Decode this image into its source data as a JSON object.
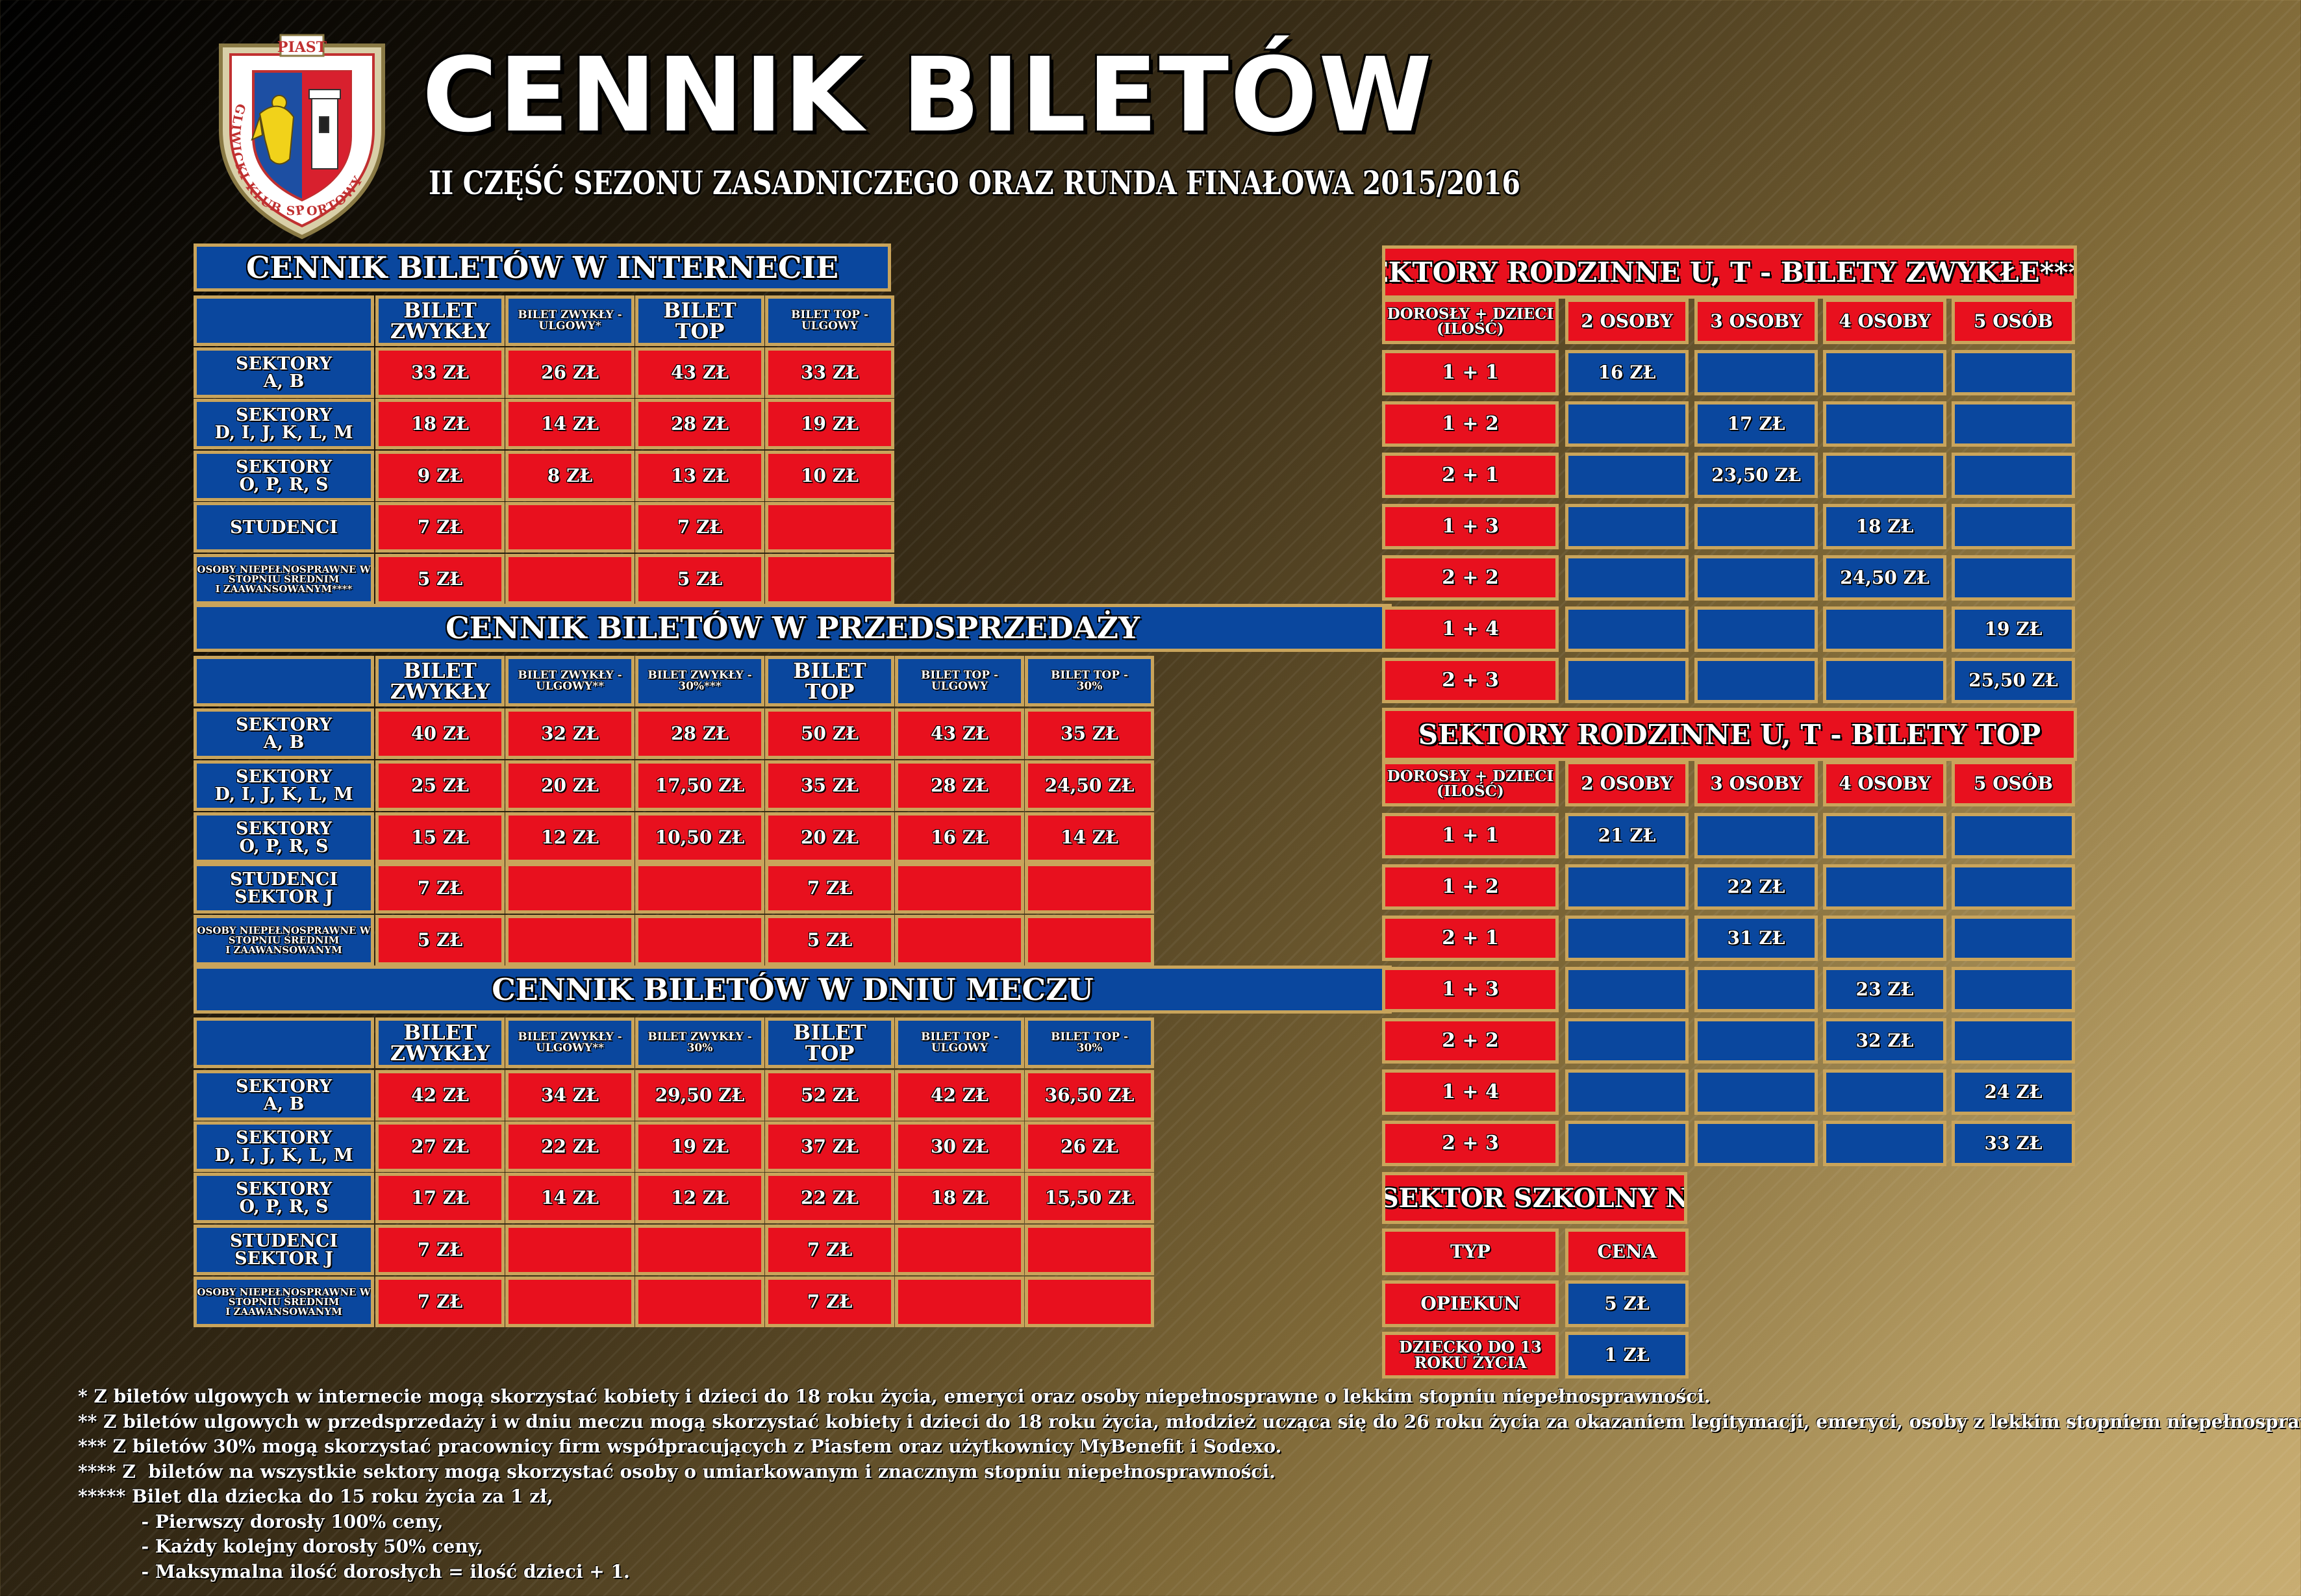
{
  "header": {
    "title": "CENNIK BILETÓW",
    "subtitle": "II CZĘŚĆ SEZONU ZASADNICZEGO ORAZ RUNDA FINAŁOWA 2015/2016",
    "logo_text_top": "PIAST",
    "logo_text_ring": "GLIWICKI KLUB SPORTOWY"
  },
  "internet": {
    "title": "CENNIK BILETÓW W INTERNECIE",
    "columns": [
      "BILET\nZWYKŁY",
      "BILET ZWYKŁY -\nULGOWY*",
      "BILET\nTOP",
      "BILET TOP -\nULGOWY"
    ],
    "rows": [
      {
        "label": "SEKTORY\nA, B",
        "values": [
          "33 ZŁ",
          "26 ZŁ",
          "43 ZŁ",
          "33 ZŁ"
        ]
      },
      {
        "label": "SEKTORY\nD, I, J, K, L, M",
        "values": [
          "18 ZŁ",
          "14 ZŁ",
          "28 ZŁ",
          "19 ZŁ"
        ]
      },
      {
        "label": "SEKTORY\nO, P, R, S",
        "values": [
          "9 ZŁ",
          "8 ZŁ",
          "13 ZŁ",
          "10 ZŁ"
        ]
      },
      {
        "label": "STUDENCI",
        "values": [
          "7 ZŁ",
          "",
          "7 ZŁ",
          ""
        ]
      },
      {
        "label": "OSOBY NIEPEŁNOSPRAWNE W\nSTOPNIU ŚREDNIM\nI ZAAWANSOWANYM****",
        "values": [
          "5 ZŁ",
          "",
          "5 ZŁ",
          ""
        ]
      }
    ]
  },
  "presale": {
    "title": "CENNIK BILETÓW W PRZEDSPRZEDAŻY",
    "columns": [
      "BILET\nZWYKŁY",
      "BILET ZWYKŁY -\nULGOWY**",
      "BILET ZWYKŁY -\n30%***",
      "BILET\nTOP",
      "BILET TOP -\nULGOWY",
      "BILET TOP -\n30%"
    ],
    "rows": [
      {
        "label": "SEKTORY\nA, B",
        "values": [
          "40 ZŁ",
          "32 ZŁ",
          "28 ZŁ",
          "50 ZŁ",
          "43 ZŁ",
          "35 ZŁ"
        ]
      },
      {
        "label": "SEKTORY\nD, I, J, K, L, M",
        "values": [
          "25 ZŁ",
          "20 ZŁ",
          "17,50 ZŁ",
          "35 ZŁ",
          "28 ZŁ",
          "24,50 ZŁ"
        ]
      },
      {
        "label": "SEKTORY\nO, P, R, S",
        "values": [
          "15 ZŁ",
          "12 ZŁ",
          "10,50 ZŁ",
          "20 ZŁ",
          "16 ZŁ",
          "14 ZŁ"
        ]
      },
      {
        "label": "STUDENCI\nSEKTOR J",
        "values": [
          "7 ZŁ",
          "",
          "",
          "7 ZŁ",
          "",
          ""
        ]
      },
      {
        "label": "OSOBY NIEPEŁNOSPRAWNE W\nSTOPNIU ŚREDNIM\nI ZAAWANSOWANYM",
        "values": [
          "5 ZŁ",
          "",
          "",
          "5 ZŁ",
          "",
          ""
        ]
      }
    ]
  },
  "matchday": {
    "title": "CENNIK BILETÓW W DNIU MECZU",
    "columns": [
      "BILET\nZWYKŁY",
      "BILET ZWYKŁY -\nULGOWY**",
      "BILET ZWYKŁY -\n30%",
      "BILET\nTOP",
      "BILET TOP -\nULGOWY",
      "BILET TOP -\n30%"
    ],
    "rows": [
      {
        "label": "SEKTORY\nA, B",
        "values": [
          "42 ZŁ",
          "34 ZŁ",
          "29,50 ZŁ",
          "52 ZŁ",
          "42 ZŁ",
          "36,50 ZŁ"
        ]
      },
      {
        "label": "SEKTORY\nD, I, J, K, L, M",
        "values": [
          "27 ZŁ",
          "22 ZŁ",
          "19 ZŁ",
          "37 ZŁ",
          "30 ZŁ",
          "26 ZŁ"
        ]
      },
      {
        "label": "SEKTORY\nO, P, R, S",
        "values": [
          "17 ZŁ",
          "14 ZŁ",
          "12 ZŁ",
          "22 ZŁ",
          "18 ZŁ",
          "15,50 ZŁ"
        ]
      },
      {
        "label": "STUDENCI\nSEKTOR J",
        "values": [
          "7 ZŁ",
          "",
          "",
          "7 ZŁ",
          "",
          ""
        ]
      },
      {
        "label": "OSOBY NIEPEŁNOSPRAWNE W\nSTOPNIU ŚREDNIM\nI ZAAWANSOWANYM",
        "values": [
          "7 ZŁ",
          "",
          "",
          "7 ZŁ",
          "",
          ""
        ]
      }
    ]
  },
  "family_regular": {
    "title": "SEKTORY RODZINNE U, T - BILETY ZWYKŁE*****",
    "columns": [
      "DOROSŁY + DZIECI\n(ILOŚĆ)",
      "2 OSOBY",
      "3 OSOBY",
      "4 OSOBY",
      "5 OSÓB"
    ],
    "rows": [
      {
        "label": "1 + 1",
        "values": [
          "16 ZŁ",
          "",
          "",
          ""
        ]
      },
      {
        "label": "1 + 2",
        "values": [
          "",
          "17 ZŁ",
          "",
          ""
        ]
      },
      {
        "label": "2 + 1",
        "values": [
          "",
          "23,50 ZŁ",
          "",
          ""
        ]
      },
      {
        "label": "1 + 3",
        "values": [
          "",
          "",
          "18 ZŁ",
          ""
        ]
      },
      {
        "label": "2 + 2",
        "values": [
          "",
          "",
          "24,50 ZŁ",
          ""
        ]
      },
      {
        "label": "1 + 4",
        "values": [
          "",
          "",
          "",
          "19 ZŁ"
        ]
      },
      {
        "label": "2 + 3",
        "values": [
          "",
          "",
          "",
          "25,50 ZŁ"
        ]
      }
    ]
  },
  "family_top": {
    "title": "SEKTORY RODZINNE U, T - BILETY TOP",
    "columns": [
      "DOROSŁY + DZIECI\n(ILOŚĆ)",
      "2 OSOBY",
      "3 OSOBY",
      "4 OSOBY",
      "5 OSÓB"
    ],
    "rows": [
      {
        "label": "1 + 1",
        "values": [
          "21 ZŁ",
          "",
          "",
          ""
        ]
      },
      {
        "label": "1 + 2",
        "values": [
          "",
          "22 ZŁ",
          "",
          ""
        ]
      },
      {
        "label": "2 + 1",
        "values": [
          "",
          "31 ZŁ",
          "",
          ""
        ]
      },
      {
        "label": "1 + 3",
        "values": [
          "",
          "",
          "23 ZŁ",
          ""
        ]
      },
      {
        "label": "2 + 2",
        "values": [
          "",
          "",
          "32 ZŁ",
          ""
        ]
      },
      {
        "label": "1 + 4",
        "values": [
          "",
          "",
          "",
          "24 ZŁ"
        ]
      },
      {
        "label": "2 + 3",
        "values": [
          "",
          "",
          "",
          "33 ZŁ"
        ]
      }
    ]
  },
  "school": {
    "title": "SEKTOR SZKOLNY N",
    "columns": [
      "TYP",
      "CENA"
    ],
    "rows": [
      {
        "label": "OPIEKUN",
        "values": [
          "5 ZŁ"
        ]
      },
      {
        "label": "DZIECKO DO 13\nROKU ŻYCIA",
        "values": [
          "1 ZŁ"
        ]
      }
    ]
  },
  "footnotes": [
    "* Z biletów ulgowych w internecie mogą skorzystać kobiety i dzieci do 18 roku życia, emeryci oraz osoby niepełnosprawne o lekkim stopniu niepełnosprawności.",
    "** Z biletów ulgowych w przedsprzedaży i w dniu meczu mogą skorzystać kobiety i dzieci do 18 roku życia, młodzież ucząca się do 26 roku życia za okazaniem legitymacji, emeryci, osoby z lekkim stopniem niepełnosprawności.",
    "*** Z biletów 30% mogą skorzystać pracownicy firm współpracujących z Piastem oraz użytkownicy MyBenefit i Sodexo.",
    "**** Z  biletów na wszystkie sektory mogą skorzystać osoby o umiarkowanym i znacznym stopniu niepełnosprawności.",
    "***** Bilet dla dziecka do 15 roku życia za 1 zł,",
    "          - Pierwszy dorosły 100% ceny,",
    "          - Każdy kolejny dorosły 50% ceny,",
    "          - Maksymalna ilość dorosłych = ilość dzieci + 1."
  ],
  "colors": {
    "red": "#e8101e",
    "blue": "#0a479e",
    "border": "#c9a45b"
  }
}
